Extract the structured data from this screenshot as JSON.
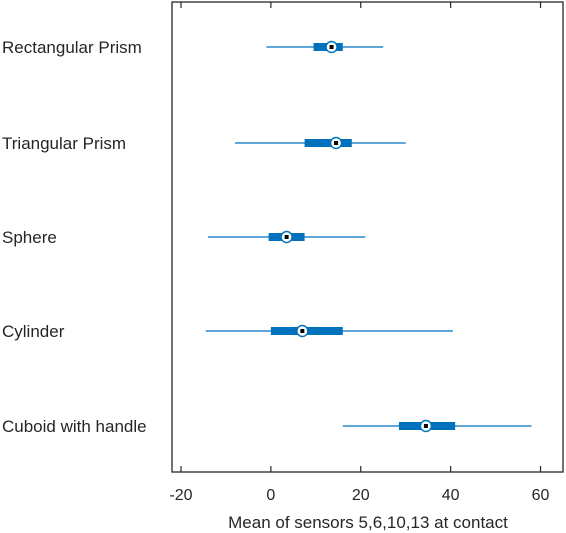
{
  "chart_data": {
    "type": "boxplot",
    "orientation": "horizontal",
    "title": "",
    "xlabel": "Mean of sensors 5,6,10,13 at contact",
    "ylabel": "",
    "xlim": [
      -22,
      65
    ],
    "xticks": [
      -20,
      0,
      20,
      40,
      60
    ],
    "grid": false,
    "legend": "none",
    "colors": {
      "box": "#0072BD",
      "median_fill": "#ffffff",
      "median_center": "#000000",
      "axis": "#262626"
    },
    "categories": [
      "Rectangular Prism",
      "Triangular Prism",
      "Sphere",
      "Cylinder",
      "Cuboid with handle"
    ],
    "boxes": [
      {
        "category": "Rectangular Prism",
        "whisker_low": -1,
        "q1": 9.5,
        "median": 13.5,
        "q3": 16,
        "whisker_high": 25
      },
      {
        "category": "Triangular Prism",
        "whisker_low": -8,
        "q1": 7.5,
        "median": 14.5,
        "q3": 18,
        "whisker_high": 30
      },
      {
        "category": "Sphere",
        "whisker_low": -14,
        "q1": -0.5,
        "median": 3.5,
        "q3": 7.5,
        "whisker_high": 21
      },
      {
        "category": "Cylinder",
        "whisker_low": -14.5,
        "q1": 0,
        "median": 7,
        "q3": 16,
        "whisker_high": 40.5
      },
      {
        "category": "Cuboid with handle",
        "whisker_low": 16,
        "q1": 28.5,
        "median": 34.5,
        "q3": 41,
        "whisker_high": 58
      }
    ]
  }
}
